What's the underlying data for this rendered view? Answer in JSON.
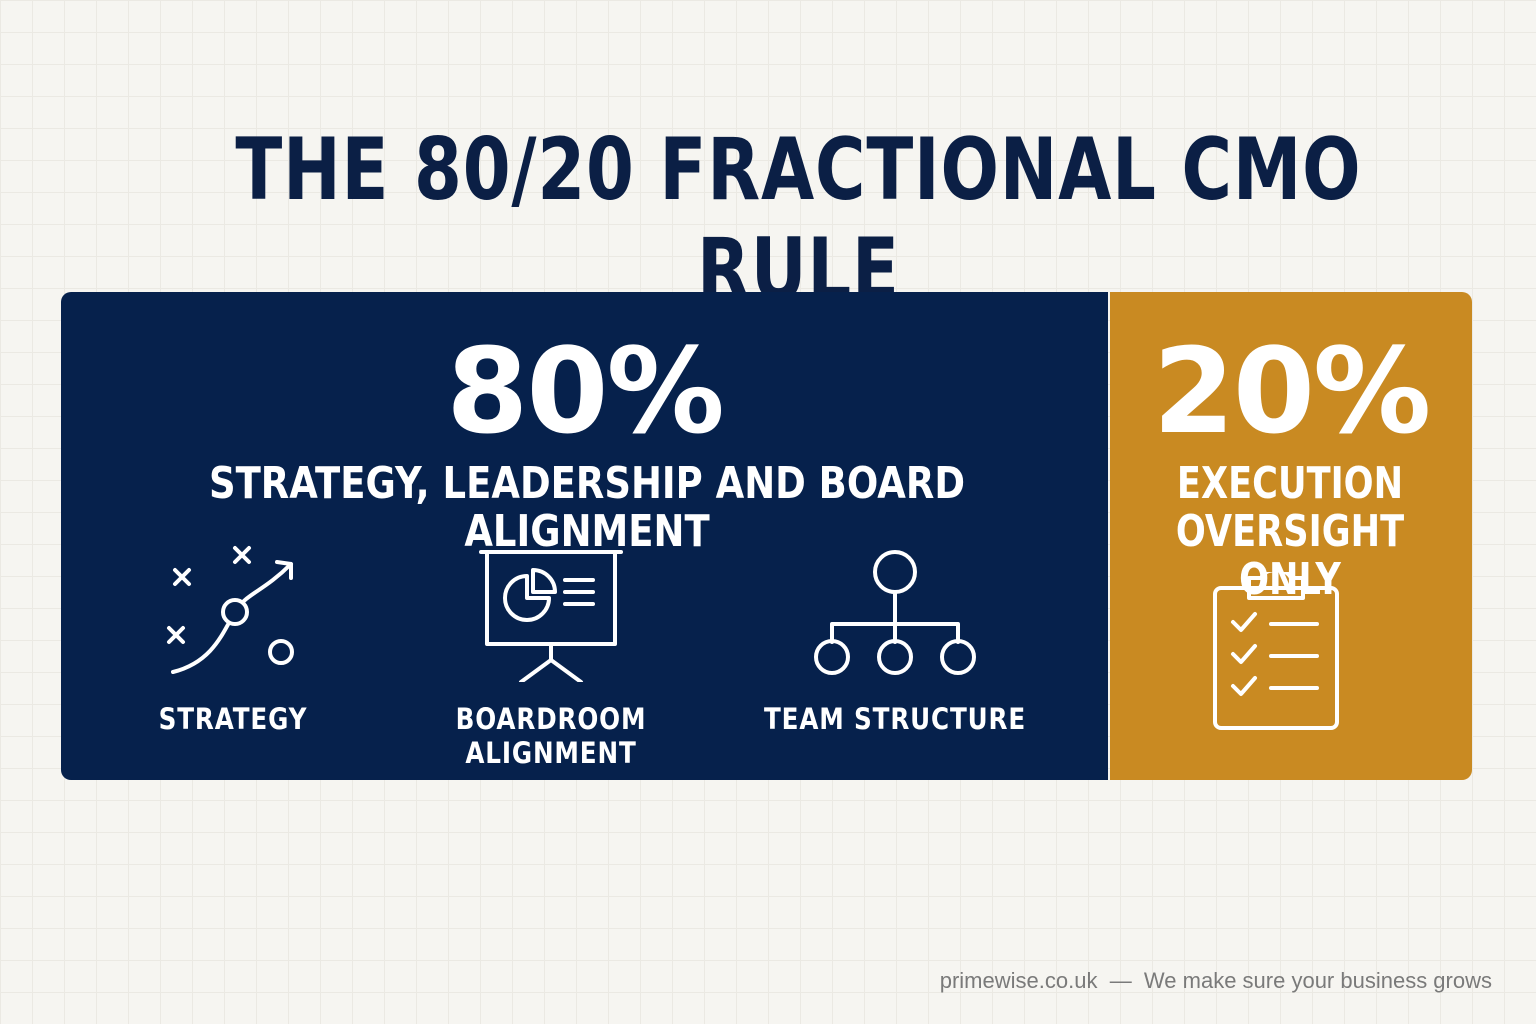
{
  "title": "THE 80/20 FRACTIONAL CMO RULE",
  "primary": {
    "percent": "80%",
    "subtitle": "STRATEGY, LEADERSHIP AND BOARD ALIGNMENT",
    "color": "#06214c",
    "pillars": [
      {
        "label": "STRATEGY",
        "icon": "strategy-play-icon"
      },
      {
        "label": "BOARDROOM ALIGNMENT",
        "icon": "presentation-board-icon"
      },
      {
        "label": "TEAM STRUCTURE",
        "icon": "org-chart-icon"
      }
    ]
  },
  "secondary": {
    "percent": "20%",
    "subtitle_line1": "EXECUTION",
    "subtitle_line2": "OVERSIGHT ONLY",
    "color": "#c98a22",
    "icon": "checklist-clipboard-icon"
  },
  "footer": {
    "site": "primewise.co.uk",
    "separator": "—",
    "tagline": "We make sure your business grows"
  }
}
